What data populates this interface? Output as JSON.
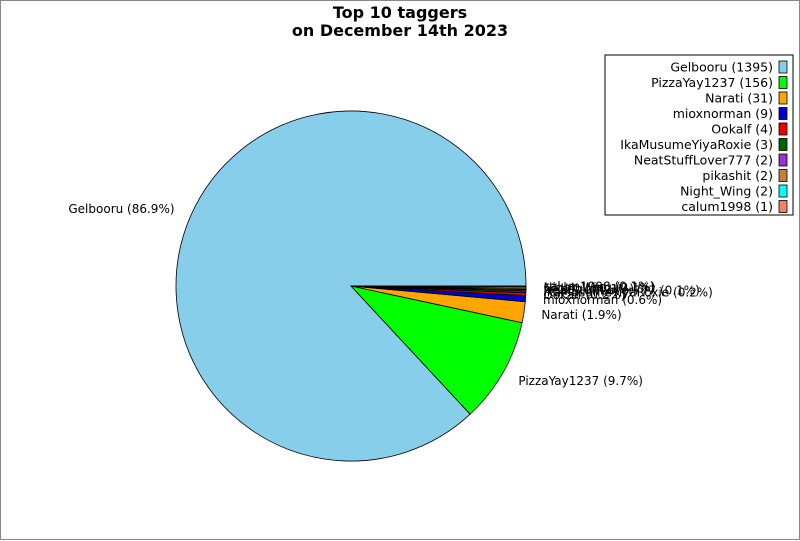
{
  "chart_data": {
    "type": "pie",
    "title_lines": [
      "Top 10 taggers",
      "on December 14th 2023"
    ],
    "legend_position": "top-right",
    "slices": [
      {
        "name": "Gelbooru",
        "value": 1395,
        "legend": "Gelbooru (1395)",
        "label": "Gelbooru (86.9%)",
        "color": "#87ceeb"
      },
      {
        "name": "PizzaYay1237",
        "value": 156,
        "legend": "PizzaYay1237 (156)",
        "label": "PizzaYay1237 (9.7%)",
        "color": "#00ff00"
      },
      {
        "name": "Narati",
        "value": 31,
        "legend": "Narati (31)",
        "label": "Narati (1.9%)",
        "color": "#ffa500"
      },
      {
        "name": "mioxnorman",
        "value": 9,
        "legend": "mioxnorman (9)",
        "label": "mioxnorman (0.6%)",
        "color": "#0000cd"
      },
      {
        "name": "Ookalf",
        "value": 4,
        "legend": "Ookalf (4)",
        "label": "Ookalf (0.2%)",
        "color": "#ee0000"
      },
      {
        "name": "IkaMusumeYiyaRoxie",
        "value": 3,
        "legend": "IkaMusumeYiyaRoxie (3)",
        "label": "IkaMusumeYiyaRoxie (0.2%)",
        "color": "#006400"
      },
      {
        "name": "NeatStuffLover777",
        "value": 2,
        "legend": "NeatStuffLover777 (2)",
        "label": "NeatStuffLover777 (0.1%)",
        "color": "#9932cc"
      },
      {
        "name": "pikashit",
        "value": 2,
        "legend": "pikashit (2)",
        "label": "pikashit (0.1%)",
        "color": "#c87f3a"
      },
      {
        "name": "Night_Wing",
        "value": 2,
        "legend": "Night_Wing (2)",
        "label": "Night_Wing (0.1%)",
        "color": "#00ffff"
      },
      {
        "name": "calum1998",
        "value": 1,
        "legend": "calum1998 (1)",
        "label": "calum1998 (0.1%)",
        "color": "#f08070"
      }
    ]
  }
}
